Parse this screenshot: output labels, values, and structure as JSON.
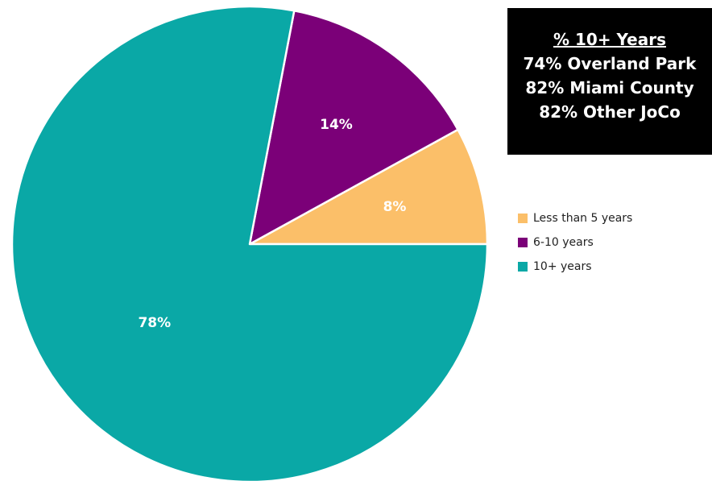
{
  "chart_data": {
    "type": "pie",
    "categories": [
      "Less than 5 years",
      "6-10 years",
      "10+ years"
    ],
    "values": [
      8,
      14,
      78
    ],
    "labels": [
      "8%",
      "14%",
      "78%"
    ],
    "colors": [
      "#FBBF69",
      "#7B0078",
      "#0AA8A6"
    ],
    "legend_position": "right",
    "start_angle_deg": 0,
    "direction": "counterclockwise"
  },
  "callout": {
    "title": "% 10+ Years",
    "lines": [
      "74% Overland Park",
      "82% Miami County",
      "82% Other JoCo"
    ]
  },
  "legend": {
    "items": [
      {
        "label": "Less than 5 years",
        "color": "#FBBF69"
      },
      {
        "label": "6-10 years",
        "color": "#7B0078"
      },
      {
        "label": "10+ years",
        "color": "#0AA8A6"
      }
    ]
  }
}
